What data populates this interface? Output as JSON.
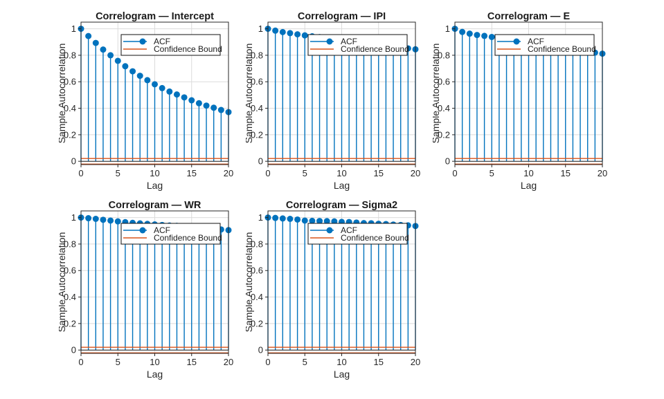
{
  "colors": {
    "acf_blue": "#0072BD",
    "confidence_orange": "#D95319",
    "grid_gray": "#dbdbdb",
    "axis_dark": "#262626",
    "baseline_black": "#1a1a1a",
    "title_black": "#1a1a1a",
    "legend_border": "#0f0f0f",
    "background": "#ffffff"
  },
  "chart_data": [
    {
      "type": "stem",
      "title": "Correlogram — Intercept",
      "xlabel": "Lag",
      "ylabel": "Sample Autocorrelation",
      "lags": [
        0,
        1,
        2,
        3,
        4,
        5,
        6,
        7,
        8,
        9,
        10,
        11,
        12,
        13,
        14,
        15,
        16,
        17,
        18,
        19,
        20
      ],
      "values": [
        1.0,
        0.945,
        0.893,
        0.843,
        0.8,
        0.758,
        0.717,
        0.679,
        0.645,
        0.612,
        0.581,
        0.552,
        0.526,
        0.504,
        0.482,
        0.46,
        0.438,
        0.42,
        0.404,
        0.387,
        0.371
      ],
      "confidence_bounds": {
        "upper": 0.021,
        "lower": -0.021
      },
      "xlim": [
        0,
        20
      ],
      "ylim": [
        -0.025,
        1.05
      ],
      "xticks": [
        0,
        5,
        10,
        15,
        20
      ],
      "xtick_labels": [
        "0",
        "5",
        "10",
        "15",
        "20"
      ],
      "yticks": [
        0,
        0.2,
        0.4,
        0.6,
        0.8,
        1
      ],
      "ytick_labels": [
        "0",
        "0.2",
        "0.4",
        "0.6",
        "0.8",
        "1"
      ],
      "grid": true,
      "legend": [
        {
          "label": "ACF",
          "style": "line-marker"
        },
        {
          "label": "Confidence Bound",
          "style": "line"
        }
      ],
      "legend_position": "north"
    },
    {
      "type": "stem",
      "title": "Correlogram — IPI",
      "xlabel": "Lag",
      "ylabel": "Sample Autocorrelation",
      "lags": [
        0,
        1,
        2,
        3,
        4,
        5,
        6,
        7,
        8,
        9,
        10,
        11,
        12,
        13,
        14,
        15,
        16,
        17,
        18,
        19,
        20
      ],
      "values": [
        1.0,
        0.986,
        0.975,
        0.967,
        0.958,
        0.95,
        0.943,
        0.937,
        0.93,
        0.923,
        0.916,
        0.909,
        0.902,
        0.895,
        0.888,
        0.881,
        0.874,
        0.866,
        0.859,
        0.852,
        0.845
      ],
      "confidence_bounds": {
        "upper": 0.021,
        "lower": -0.021
      },
      "xlim": [
        0,
        20
      ],
      "ylim": [
        -0.025,
        1.05
      ],
      "xticks": [
        0,
        5,
        10,
        15,
        20
      ],
      "xtick_labels": [
        "0",
        "5",
        "10",
        "15",
        "20"
      ],
      "yticks": [
        0,
        0.2,
        0.4,
        0.6,
        0.8,
        1
      ],
      "ytick_labels": [
        "0",
        "0.2",
        "0.4",
        "0.6",
        "0.8",
        "1"
      ],
      "grid": true,
      "legend": [
        {
          "label": "ACF",
          "style": "line-marker"
        },
        {
          "label": "Confidence Bound",
          "style": "line"
        }
      ],
      "legend_position": "north"
    },
    {
      "type": "stem",
      "title": "Correlogram — E",
      "xlabel": "Lag",
      "ylabel": "Sample Autocorrelation",
      "lags": [
        0,
        1,
        2,
        3,
        4,
        5,
        6,
        7,
        8,
        9,
        10,
        11,
        12,
        13,
        14,
        15,
        16,
        17,
        18,
        19,
        20
      ],
      "values": [
        1.0,
        0.976,
        0.963,
        0.953,
        0.946,
        0.938,
        0.93,
        0.922,
        0.914,
        0.906,
        0.898,
        0.89,
        0.882,
        0.874,
        0.866,
        0.858,
        0.85,
        0.842,
        0.832,
        0.82,
        0.812
      ],
      "confidence_bounds": {
        "upper": 0.021,
        "lower": -0.021
      },
      "xlim": [
        0,
        20
      ],
      "ylim": [
        -0.025,
        1.05
      ],
      "xticks": [
        0,
        5,
        10,
        15,
        20
      ],
      "xtick_labels": [
        "0",
        "5",
        "10",
        "15",
        "20"
      ],
      "yticks": [
        0,
        0.2,
        0.4,
        0.6,
        0.8,
        1
      ],
      "ytick_labels": [
        "0",
        "0.2",
        "0.4",
        "0.6",
        "0.8",
        "1"
      ],
      "grid": true,
      "legend": [
        {
          "label": "ACF",
          "style": "line-marker"
        },
        {
          "label": "Confidence Bound",
          "style": "line"
        }
      ],
      "legend_position": "north"
    },
    {
      "type": "stem",
      "title": "Correlogram — WR",
      "xlabel": "Lag",
      "ylabel": "Sample Autocorrelation",
      "lags": [
        0,
        1,
        2,
        3,
        4,
        5,
        6,
        7,
        8,
        9,
        10,
        11,
        12,
        13,
        14,
        15,
        16,
        17,
        18,
        19,
        20
      ],
      "values": [
        1.0,
        0.995,
        0.99,
        0.983,
        0.977,
        0.971,
        0.965,
        0.96,
        0.956,
        0.952,
        0.948,
        0.944,
        0.94,
        0.937,
        0.933,
        0.929,
        0.925,
        0.92,
        0.915,
        0.91,
        0.905
      ],
      "confidence_bounds": {
        "upper": 0.021,
        "lower": -0.021
      },
      "xlim": [
        0,
        20
      ],
      "ylim": [
        -0.025,
        1.05
      ],
      "xticks": [
        0,
        5,
        10,
        15,
        20
      ],
      "xtick_labels": [
        "0",
        "5",
        "10",
        "15",
        "20"
      ],
      "yticks": [
        0,
        0.2,
        0.4,
        0.6,
        0.8,
        1
      ],
      "ytick_labels": [
        "0",
        "0.2",
        "0.4",
        "0.6",
        "0.8",
        "1"
      ],
      "grid": true,
      "legend": [
        {
          "label": "ACF",
          "style": "line-marker"
        },
        {
          "label": "Confidence Bound",
          "style": "line"
        }
      ],
      "legend_position": "north"
    },
    {
      "type": "stem",
      "title": "Correlogram — Sigma2",
      "xlabel": "Lag",
      "ylabel": "Sample Autocorrelation",
      "lags": [
        0,
        1,
        2,
        3,
        4,
        5,
        6,
        7,
        8,
        9,
        10,
        11,
        12,
        13,
        14,
        15,
        16,
        17,
        18,
        19,
        20
      ],
      "values": [
        1.0,
        0.997,
        0.993,
        0.99,
        0.985,
        0.977,
        0.975,
        0.974,
        0.973,
        0.971,
        0.967,
        0.966,
        0.962,
        0.958,
        0.957,
        0.953,
        0.951,
        0.947,
        0.944,
        0.941,
        0.936
      ],
      "confidence_bounds": {
        "upper": 0.021,
        "lower": -0.021
      },
      "xlim": [
        0,
        20
      ],
      "ylim": [
        -0.025,
        1.05
      ],
      "xticks": [
        0,
        5,
        10,
        15,
        20
      ],
      "xtick_labels": [
        "0",
        "5",
        "10",
        "15",
        "20"
      ],
      "yticks": [
        0,
        0.2,
        0.4,
        0.6,
        0.8,
        1
      ],
      "ytick_labels": [
        "0",
        "0.2",
        "0.4",
        "0.6",
        "0.8",
        "1"
      ],
      "grid": true,
      "legend": [
        {
          "label": "ACF",
          "style": "line-marker"
        },
        {
          "label": "Confidence Bound",
          "style": "line"
        }
      ],
      "legend_position": "north"
    }
  ]
}
